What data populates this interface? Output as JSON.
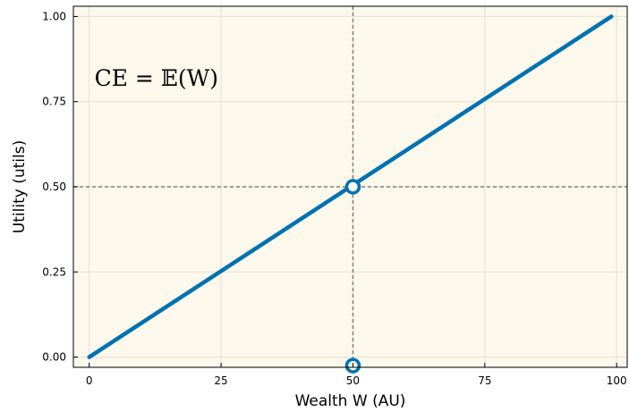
{
  "chart_data": {
    "type": "line",
    "xlabel": "Wealth W (AU)",
    "ylabel": "Utility (utils)",
    "xlim": [
      -3,
      102
    ],
    "ylim": [
      -0.03,
      1.03
    ],
    "xticks": [
      0,
      25,
      50,
      75,
      100
    ],
    "xtick_labels": [
      "0",
      "25",
      "50",
      "75",
      "100"
    ],
    "yticks": [
      0,
      0.25,
      0.5,
      0.75,
      1
    ],
    "ytick_labels": [
      "0.00",
      "0.25",
      "0.50",
      "0.75",
      "1.00"
    ],
    "grid": true,
    "legend": "none",
    "series": [
      {
        "x": [
          0,
          99
        ],
        "y": [
          0,
          1
        ],
        "color": "#0072b2"
      }
    ],
    "reference_lines": [
      {
        "orientation": "vertical",
        "x": 50,
        "style": "dotted",
        "color": "#808080"
      },
      {
        "orientation": "horizontal",
        "y": 0.5,
        "style": "dotted",
        "color": "#808080"
      }
    ],
    "markers": [
      {
        "x": 50,
        "y": 0.5,
        "shape": "open-circle",
        "color": "#0072b2"
      },
      {
        "x": 50,
        "y": -0.025,
        "shape": "open-circle",
        "color": "#0072b2"
      }
    ],
    "annotation": {
      "text": "CE = 𝔼(W)",
      "x": 1,
      "y": 0.82
    },
    "plot_background": "#fdf8ec"
  }
}
